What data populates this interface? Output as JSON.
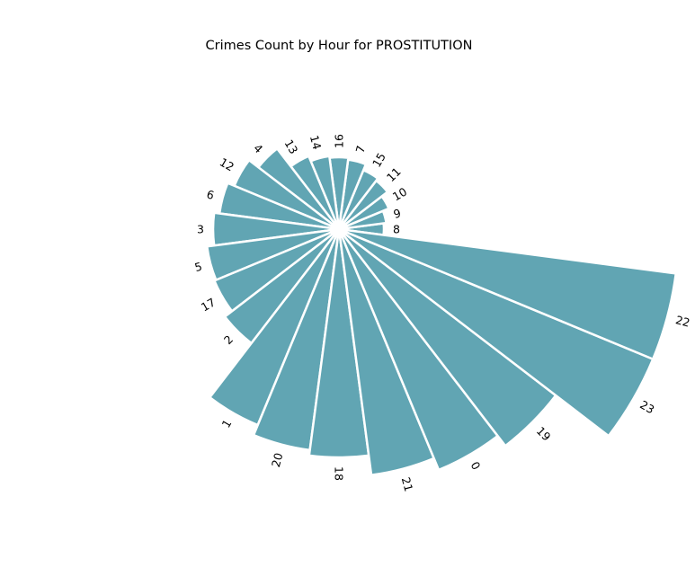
{
  "chart_data": {
    "type": "bar",
    "projection": "polar",
    "title": "Crimes Count by Hour for PROSTITUTION",
    "xlabel": "",
    "ylabel": "",
    "bar_color": "#61a5b3",
    "edge_color": "#ffffff",
    "sort_order": "ascending-counterclockwise",
    "categories": [
      "8",
      "9",
      "10",
      "11",
      "15",
      "7",
      "16",
      "14",
      "13",
      "4",
      "12",
      "6",
      "3",
      "5",
      "17",
      "2",
      "1",
      "20",
      "18",
      "21",
      "0",
      "19",
      "23",
      "22"
    ],
    "values": [
      42,
      45,
      52,
      60,
      63,
      70,
      72,
      74,
      80,
      105,
      118,
      126,
      132,
      140,
      142,
      152,
      228,
      240,
      246,
      268,
      282,
      296,
      370,
      370
    ]
  }
}
